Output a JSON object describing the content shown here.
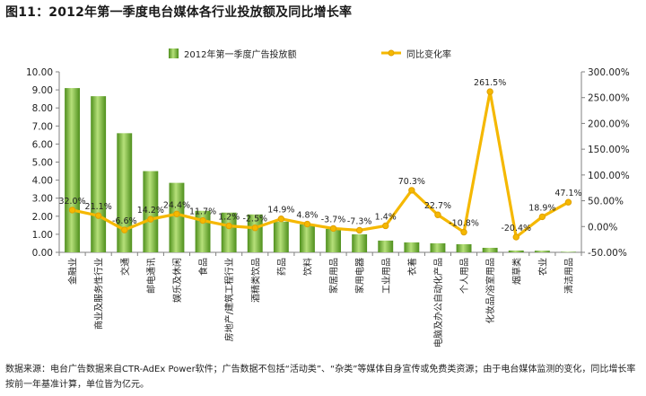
{
  "title": "图11：2012年第一季度电台媒体各行业投放额及同比增长率",
  "chart_data": {
    "type": "bar",
    "categories": [
      "金融业",
      "商业及服务性行业",
      "交通",
      "邮电通讯",
      "娱乐及休闲",
      "食品",
      "房地产/建筑工程行业",
      "酒精类饮品",
      "药品",
      "饮料",
      "家居用品",
      "家用电器",
      "工业用品",
      "衣着",
      "电脑及办公自动化产品",
      "个人用品",
      "化妆品/浴室用品",
      "烟草类",
      "农业",
      "清洁用品"
    ],
    "series": [
      {
        "name": "2012年第一季度广告投放额",
        "type": "bar",
        "axis": "left",
        "values": [
          9.1,
          8.65,
          6.6,
          4.5,
          3.85,
          2.3,
          2.2,
          2.1,
          1.7,
          1.55,
          1.3,
          1.0,
          0.65,
          0.55,
          0.5,
          0.45,
          0.25,
          0.1,
          0.09,
          0.03
        ]
      },
      {
        "name": "同比变化率",
        "type": "line",
        "axis": "right",
        "values": [
          32.0,
          21.1,
          -6.6,
          14.2,
          24.4,
          11.7,
          1.2,
          -2.5,
          14.9,
          4.8,
          -3.7,
          -7.3,
          1.4,
          70.3,
          22.7,
          -10.8,
          261.5,
          -20.4,
          18.9,
          47.1
        ],
        "labels": [
          "32.0%",
          "21.1%",
          "-6.6%",
          "14.2%",
          "24.4%",
          "11.7%",
          "1.2%",
          "-2.5%",
          "14.9%",
          "4.8%",
          "-3.7%",
          "-7.3%",
          "1.4%",
          "70.3%",
          "22.7%",
          "-10.8%",
          "261.5%",
          "-20.4%",
          "18.9%",
          "47.1%"
        ]
      }
    ],
    "y_left": {
      "min": 0,
      "max": 10,
      "step": 1,
      "ticks": [
        "0.00",
        "1.00",
        "2.00",
        "3.00",
        "4.00",
        "5.00",
        "6.00",
        "7.00",
        "8.00",
        "9.00",
        "10.00"
      ]
    },
    "y_right": {
      "min": -50,
      "max": 300,
      "step": 50,
      "ticks": [
        "-50.00%",
        "0.00%",
        "50.00%",
        "100.00%",
        "150.00%",
        "200.00%",
        "250.00%",
        "300.00%"
      ]
    },
    "legend": [
      "2012年第一季度广告投放额",
      "同比变化率"
    ],
    "legend_position": "top",
    "colors": {
      "bar": "#6cb52d",
      "bar_light": "#b6e07a",
      "bar_dark": "#4e8f1c",
      "line": "#f5b800",
      "line_edge": "#e0a000",
      "axis": "#808080"
    }
  },
  "footnote": "数据来源：电台广告数据来自CTR-AdEx Power软件；广告数据不包括“活动类”、“杂类”等媒体自身宣传或免费类资源；由于电台媒体监测的变化，同比增长率按前一年基准计算，单位皆为亿元。"
}
